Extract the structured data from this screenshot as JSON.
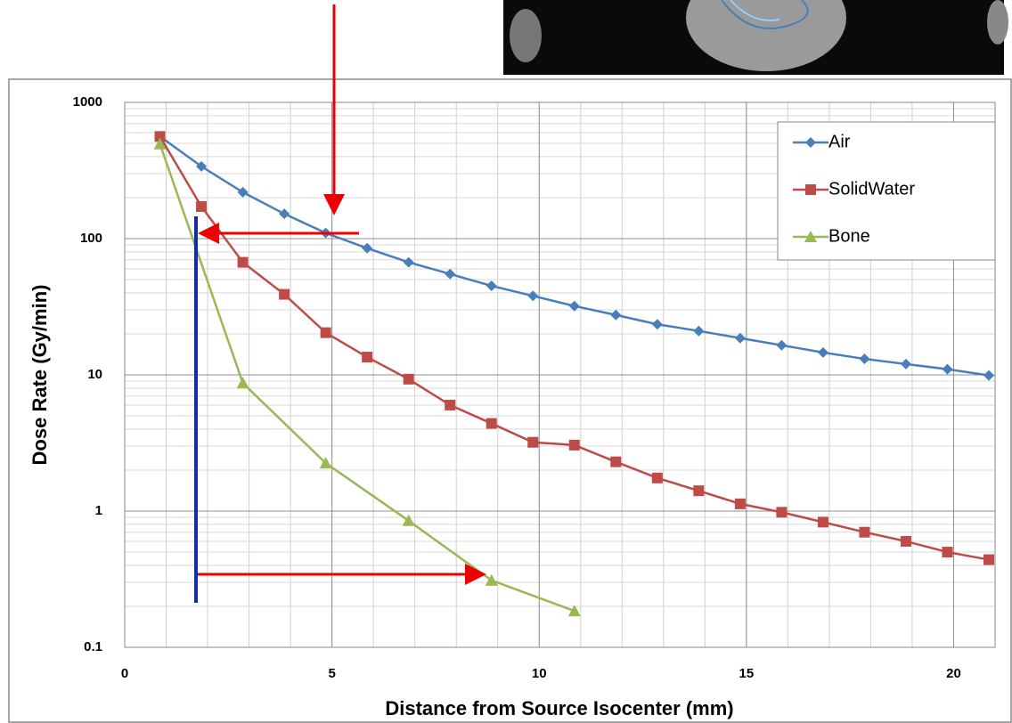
{
  "chart_data": {
    "type": "line",
    "x_label": "Distance from Source Isocenter (mm)",
    "y_label": "Dose Rate (Gy/min)",
    "x": [
      0.85,
      1.85,
      2.85,
      3.85,
      4.85,
      5.85,
      6.85,
      7.85,
      8.85,
      9.85,
      10.85,
      11.85,
      12.85,
      13.85,
      14.85,
      15.85,
      16.85,
      17.85,
      18.85,
      19.85,
      20.85
    ],
    "series": [
      {
        "name": "Air",
        "color": "#4a7ebb",
        "marker": "diamond",
        "values": [
          562,
          339,
          219,
          152,
          110,
          85,
          67,
          55,
          45,
          38,
          32,
          27.5,
          23.5,
          21,
          18.6,
          16.5,
          14.6,
          13.1,
          12,
          11,
          9.9
        ]
      },
      {
        "name": "SolidWater",
        "color": "#be4b48",
        "marker": "square",
        "values": [
          562,
          172,
          67,
          39,
          20.4,
          13.5,
          9.3,
          6,
          4.4,
          3.2,
          3.05,
          2.3,
          1.75,
          1.41,
          1.13,
          0.98,
          0.83,
          0.7,
          0.6,
          0.5,
          0.44
        ]
      },
      {
        "name": "Bone",
        "color": "#98b954",
        "marker": "triangle",
        "x": [
          0.85,
          2.85,
          4.85,
          6.85,
          8.85,
          10.85
        ],
        "values": [
          495,
          8.7,
          2.25,
          0.85,
          0.31,
          0.185
        ]
      }
    ],
    "xlim": [
      0,
      21
    ],
    "xticks": [
      0,
      5,
      10,
      15,
      20
    ],
    "ylim": [
      0.1,
      1000
    ],
    "yticks": [
      0.1,
      1,
      10,
      100,
      1000
    ],
    "y_log": true,
    "grid": true,
    "legend": "top-right"
  }
}
